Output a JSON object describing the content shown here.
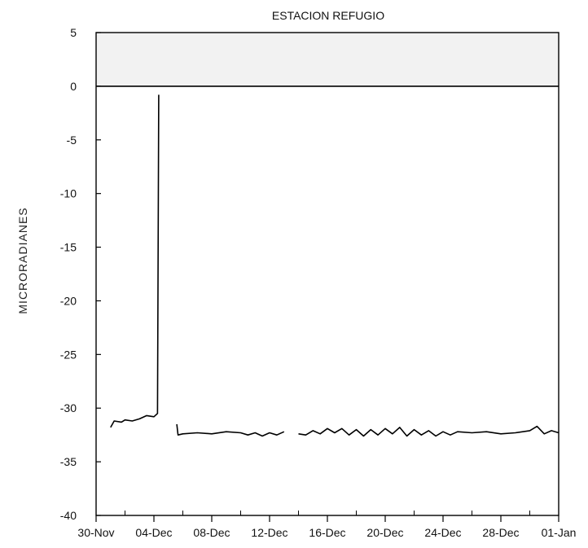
{
  "chart_data": {
    "type": "line",
    "title": "ESTACION REFUGIO",
    "xlabel": "",
    "ylabel": "MICRORADIANES",
    "xlim": [
      "30-Nov",
      "01-Jan"
    ],
    "ylim": [
      -40,
      5
    ],
    "x_tick_labels": [
      "30-Nov",
      "04-Dec",
      "08-Dec",
      "12-Dec",
      "16-Dec",
      "20-Dec",
      "24-Dec",
      "28-Dec",
      "01-Jan"
    ],
    "y_ticks": [
      5,
      0,
      -5,
      -10,
      -15,
      -20,
      -25,
      -30,
      -35,
      -40
    ],
    "y_tick_labels": [
      "5",
      "0",
      "-5",
      "-10",
      "-15",
      "-20",
      "-25",
      "-30",
      "-35",
      "-40"
    ],
    "grid": false,
    "shaded_band": {
      "from": 0,
      "to": 5,
      "color": "#f2f2f2"
    },
    "reference_line": 0,
    "series": [
      {
        "segments": [
          [
            {
              "x": "01-Dec",
              "y": -31.8
            },
            {
              "x": "01-Dec 06h",
              "y": -31.2
            },
            {
              "x": "01-Dec 18h",
              "y": -31.3
            },
            {
              "x": "02-Dec",
              "y": -31.1
            },
            {
              "x": "02-Dec 12h",
              "y": -31.2
            },
            {
              "x": "03-Dec",
              "y": -31.0
            },
            {
              "x": "03-Dec 12h",
              "y": -30.7
            },
            {
              "x": "04-Dec",
              "y": -30.8
            },
            {
              "x": "04-Dec 06h",
              "y": -30.5
            },
            {
              "x": "04-Dec 08h",
              "y": -0.8
            }
          ],
          [
            {
              "x": "05-Dec 14h",
              "y": -31.5
            },
            {
              "x": "05-Dec 16h",
              "y": -32.5
            },
            {
              "x": "06-Dec",
              "y": -32.4
            },
            {
              "x": "07-Dec",
              "y": -32.3
            },
            {
              "x": "08-Dec",
              "y": -32.4
            },
            {
              "x": "09-Dec",
              "y": -32.2
            },
            {
              "x": "10-Dec",
              "y": -32.3
            },
            {
              "x": "10-Dec 12h",
              "y": -32.5
            },
            {
              "x": "11-Dec",
              "y": -32.3
            },
            {
              "x": "11-Dec 12h",
              "y": -32.6
            },
            {
              "x": "12-Dec",
              "y": -32.3
            },
            {
              "x": "12-Dec 12h",
              "y": -32.5
            },
            {
              "x": "13-Dec",
              "y": -32.2
            }
          ],
          [
            {
              "x": "14-Dec",
              "y": -32.4
            },
            {
              "x": "14-Dec 12h",
              "y": -32.5
            },
            {
              "x": "15-Dec",
              "y": -32.1
            },
            {
              "x": "15-Dec 12h",
              "y": -32.4
            },
            {
              "x": "16-Dec",
              "y": -31.9
            },
            {
              "x": "16-Dec 12h",
              "y": -32.3
            },
            {
              "x": "17-Dec",
              "y": -31.9
            },
            {
              "x": "17-Dec 12h",
              "y": -32.5
            },
            {
              "x": "18-Dec",
              "y": -32.0
            },
            {
              "x": "18-Dec 12h",
              "y": -32.6
            },
            {
              "x": "19-Dec",
              "y": -32.0
            },
            {
              "x": "19-Dec 12h",
              "y": -32.5
            },
            {
              "x": "20-Dec",
              "y": -31.9
            },
            {
              "x": "20-Dec 12h",
              "y": -32.4
            },
            {
              "x": "21-Dec",
              "y": -31.8
            },
            {
              "x": "21-Dec 12h",
              "y": -32.6
            },
            {
              "x": "22-Dec",
              "y": -32.0
            },
            {
              "x": "22-Dec 12h",
              "y": -32.5
            },
            {
              "x": "23-Dec",
              "y": -32.1
            },
            {
              "x": "23-Dec 12h",
              "y": -32.6
            },
            {
              "x": "24-Dec",
              "y": -32.2
            },
            {
              "x": "24-Dec 12h",
              "y": -32.5
            },
            {
              "x": "25-Dec",
              "y": -32.2
            },
            {
              "x": "26-Dec",
              "y": -32.3
            },
            {
              "x": "27-Dec",
              "y": -32.2
            },
            {
              "x": "28-Dec",
              "y": -32.4
            },
            {
              "x": "29-Dec",
              "y": -32.3
            },
            {
              "x": "30-Dec",
              "y": -32.1
            },
            {
              "x": "30-Dec 12h",
              "y": -31.7
            },
            {
              "x": "31-Dec",
              "y": -32.4
            },
            {
              "x": "31-Dec 12h",
              "y": -32.1
            },
            {
              "x": "01-Jan",
              "y": -32.3
            }
          ]
        ],
        "color": "#000000"
      }
    ]
  }
}
